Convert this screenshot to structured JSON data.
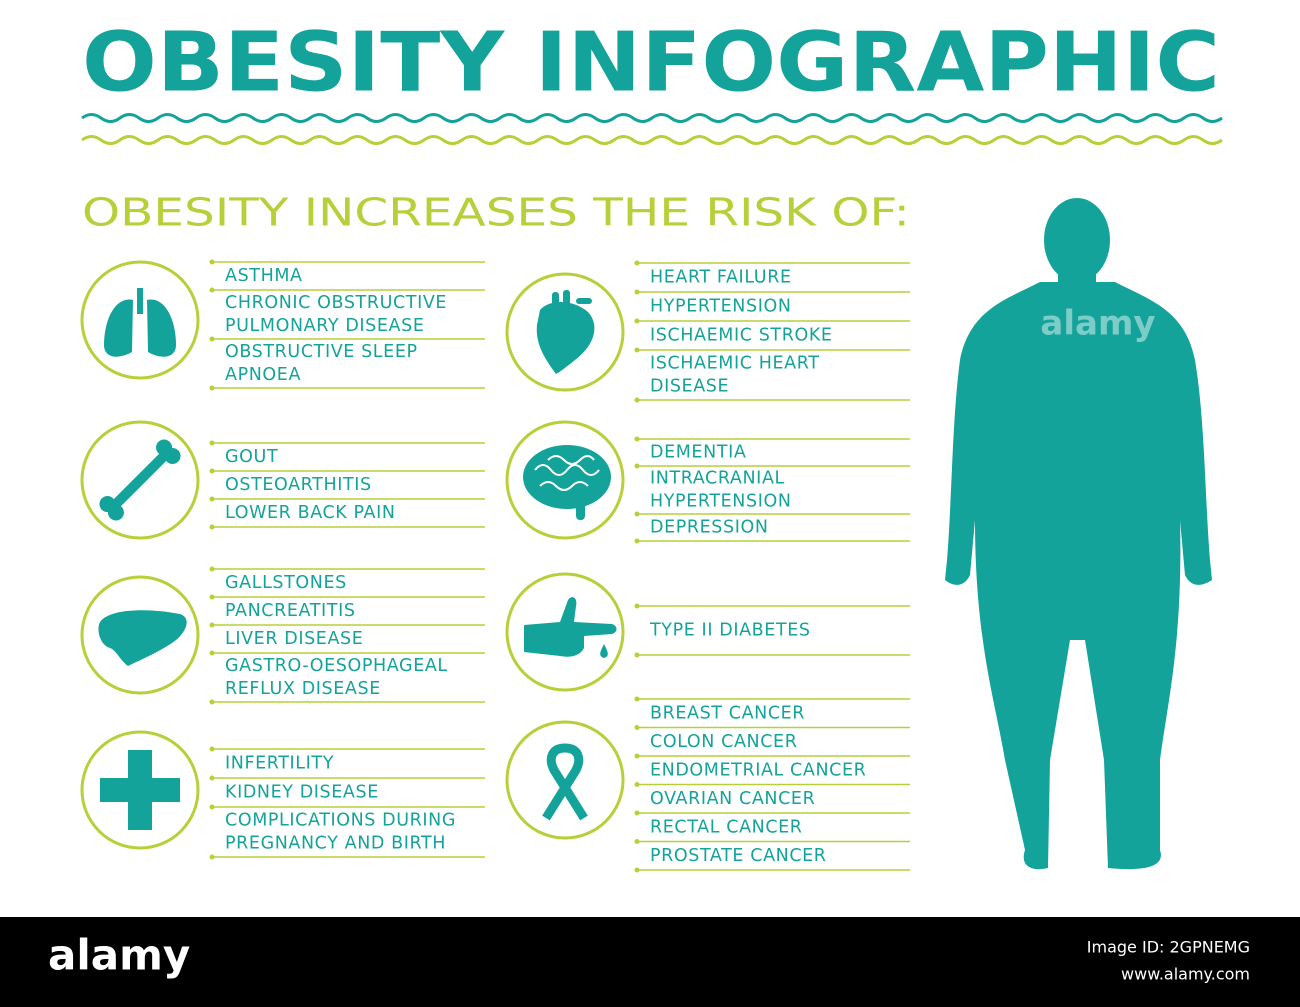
{
  "title": "OBESITY INFOGRAPHIC",
  "subtitle": "OBESITY INCREASES THE RISK OF:",
  "groups": [
    {
      "items": [
        [
          "ASTHMA"
        ],
        [
          "CHRONIC OBSTRUCTIVE",
          "PULMONARY DISEASE"
        ],
        [
          "OBSTRUCTIVE SLEEP",
          "APNOEA"
        ]
      ]
    },
    {
      "items": [
        [
          "GOUT"
        ],
        [
          "OSTEOARTHITIS"
        ],
        [
          "LOWER BACK PAIN"
        ]
      ]
    },
    {
      "items": [
        [
          "GALLSTONES"
        ],
        [
          "PANCREATITIS"
        ],
        [
          "LIVER DISEASE"
        ],
        [
          "GASTRO-OESOPHAGEAL",
          "REFLUX DISEASE"
        ]
      ]
    },
    {
      "items": [
        [
          "INFERTILITY"
        ],
        [
          "KIDNEY DISEASE"
        ],
        [
          "COMPLICATIONS DURING",
          "PREGNANCY AND BIRTH"
        ]
      ]
    },
    {
      "items": [
        [
          "HEART FAILURE"
        ],
        [
          "HYPERTENSION"
        ],
        [
          "ISCHAEMIC STROKE"
        ],
        [
          "ISCHAEMIC HEART",
          "DISEASE"
        ]
      ]
    },
    {
      "items": [
        [
          "DEMENTIA"
        ],
        [
          "INTRACRANIAL",
          "HYPERTENSION"
        ],
        [
          "DEPRESSION"
        ]
      ]
    },
    {
      "items": [
        [
          "TYPE II DIABETES"
        ]
      ]
    },
    {
      "items": [
        [
          "BREAST CANCER"
        ],
        [
          "COLON CANCER"
        ],
        [
          "ENDOMETRIAL CANCER"
        ],
        [
          "OVARIAN CANCER"
        ],
        [
          "RECTAL CANCER"
        ],
        [
          "PROSTATE CANCER"
        ]
      ]
    }
  ],
  "watermark": "alamy",
  "footer": {
    "logo": "alamy",
    "image_id": "Image ID: 2GPNEMG",
    "url": "www.alamy.com"
  }
}
